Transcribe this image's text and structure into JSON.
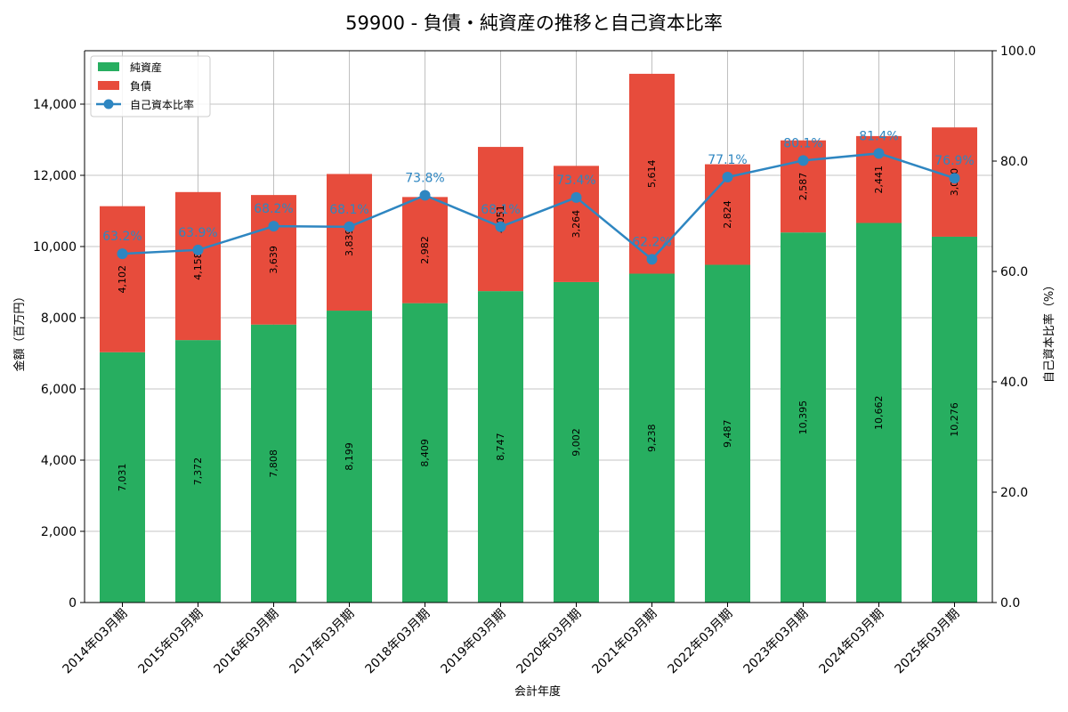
{
  "chart_data": {
    "type": "bar",
    "subtype": "stacked-bar-with-line",
    "title": "59900 - 負債・純資産の推移と自己資本比率",
    "xlabel": "会計年度",
    "ylabel": "金額（百万円）",
    "y2label": "自己資本比率（%）",
    "ylim": [
      0,
      15500
    ],
    "y2lim": [
      0,
      100
    ],
    "yticks": [
      "0",
      "2,000",
      "4,000",
      "6,000",
      "8,000",
      "10,000",
      "12,000",
      "14,000"
    ],
    "y2ticks": [
      "0.0",
      "20.0",
      "40.0",
      "60.0",
      "80.0",
      "100.0"
    ],
    "grid": true,
    "legend_position": "top-left",
    "categories": [
      "2014年03月期",
      "2015年03月期",
      "2016年03月期",
      "2017年03月期",
      "2018年03月期",
      "2019年03月期",
      "2020年03月期",
      "2021年03月期",
      "2022年03月期",
      "2023年03月期",
      "2024年03月期",
      "2025年03月期"
    ],
    "series": [
      {
        "name": "純資産",
        "kind": "bar",
        "color": "#27ae60",
        "values": [
          7031,
          7372,
          7808,
          8199,
          8409,
          8747,
          9002,
          9238,
          9487,
          10395,
          10662,
          10276
        ],
        "labels": [
          "7,031",
          "7,372",
          "7,808",
          "8,199",
          "8,409",
          "8,747",
          "9,002",
          "9,238",
          "9,487",
          "10,395",
          "10,662",
          "10,276"
        ]
      },
      {
        "name": "負債",
        "kind": "bar",
        "color": "#e74c3c",
        "values": [
          4102,
          4158,
          3639,
          3839,
          2982,
          4051,
          3264,
          5614,
          2824,
          2587,
          2441,
          3070
        ],
        "labels": [
          "4,102",
          "4,158",
          "3,639",
          "3,839",
          "2,982",
          "4,051",
          "3,264",
          "5,614",
          "2,824",
          "2,587",
          "2,441",
          "3,070"
        ]
      },
      {
        "name": "自己資本比率",
        "kind": "line",
        "axis": "right",
        "color": "#2e86c1",
        "values": [
          63.2,
          63.9,
          68.2,
          68.1,
          73.8,
          68.1,
          73.4,
          62.2,
          77.1,
          80.1,
          81.4,
          76.9
        ],
        "labels": [
          "63.2%",
          "63.9%",
          "68.2%",
          "68.1%",
          "73.8%",
          "68.1%",
          "73.4%",
          "62.2%",
          "77.1%",
          "80.1%",
          "81.4%",
          "76.9%"
        ]
      }
    ]
  }
}
